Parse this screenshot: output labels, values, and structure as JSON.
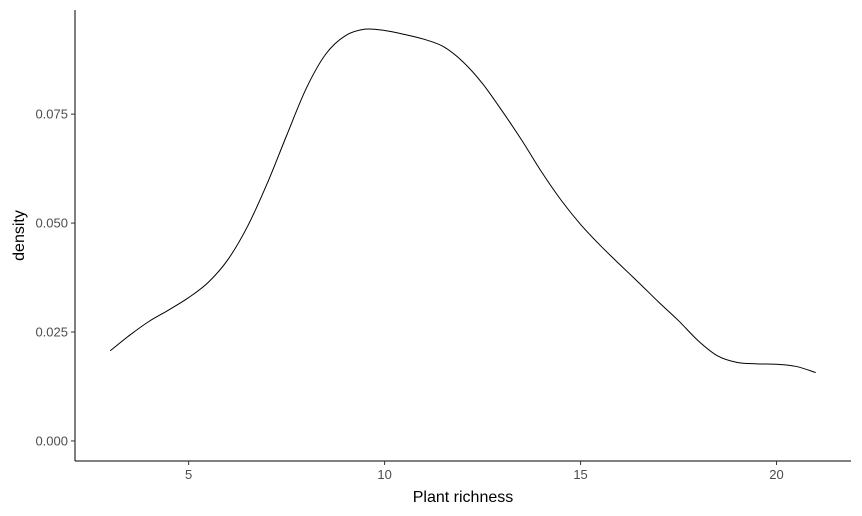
{
  "chart_data": {
    "type": "line",
    "title": "",
    "xlabel": "Plant richness",
    "ylabel": "density",
    "xlim": [
      2.1,
      21.9
    ],
    "ylim": [
      -0.0046,
      0.0989
    ],
    "x_ticks": [
      5,
      10,
      15,
      20
    ],
    "x_tick_labels": [
      "5",
      "10",
      "15",
      "20"
    ],
    "y_ticks": [
      0,
      0.025,
      0.05,
      0.075
    ],
    "y_tick_labels": [
      "0.000",
      "0.025",
      "0.050",
      "0.075"
    ],
    "grid": false,
    "legend": "none",
    "series": [
      {
        "color": "#000000",
        "x": [
          3.0,
          3.5,
          4.0,
          4.5,
          5.0,
          5.5,
          6.0,
          6.5,
          7.0,
          7.5,
          8.0,
          8.5,
          9.0,
          9.5,
          10.0,
          10.5,
          11.0,
          11.5,
          12.0,
          12.5,
          13.0,
          13.5,
          14.0,
          14.5,
          15.0,
          15.5,
          16.0,
          16.5,
          17.0,
          17.5,
          18.0,
          18.5,
          19.0,
          19.5,
          20.0,
          20.5,
          21.0
        ],
        "y": [
          0.0207,
          0.0243,
          0.0275,
          0.0301,
          0.0329,
          0.0364,
          0.0416,
          0.0492,
          0.059,
          0.0701,
          0.0809,
          0.0888,
          0.093,
          0.0945,
          0.0942,
          0.0933,
          0.0922,
          0.0905,
          0.087,
          0.082,
          0.0757,
          0.069,
          0.0618,
          0.0553,
          0.0497,
          0.0449,
          0.0405,
          0.0362,
          0.0318,
          0.0276,
          0.023,
          0.0195,
          0.018,
          0.0177,
          0.0176,
          0.0171,
          0.0157
        ]
      }
    ]
  }
}
